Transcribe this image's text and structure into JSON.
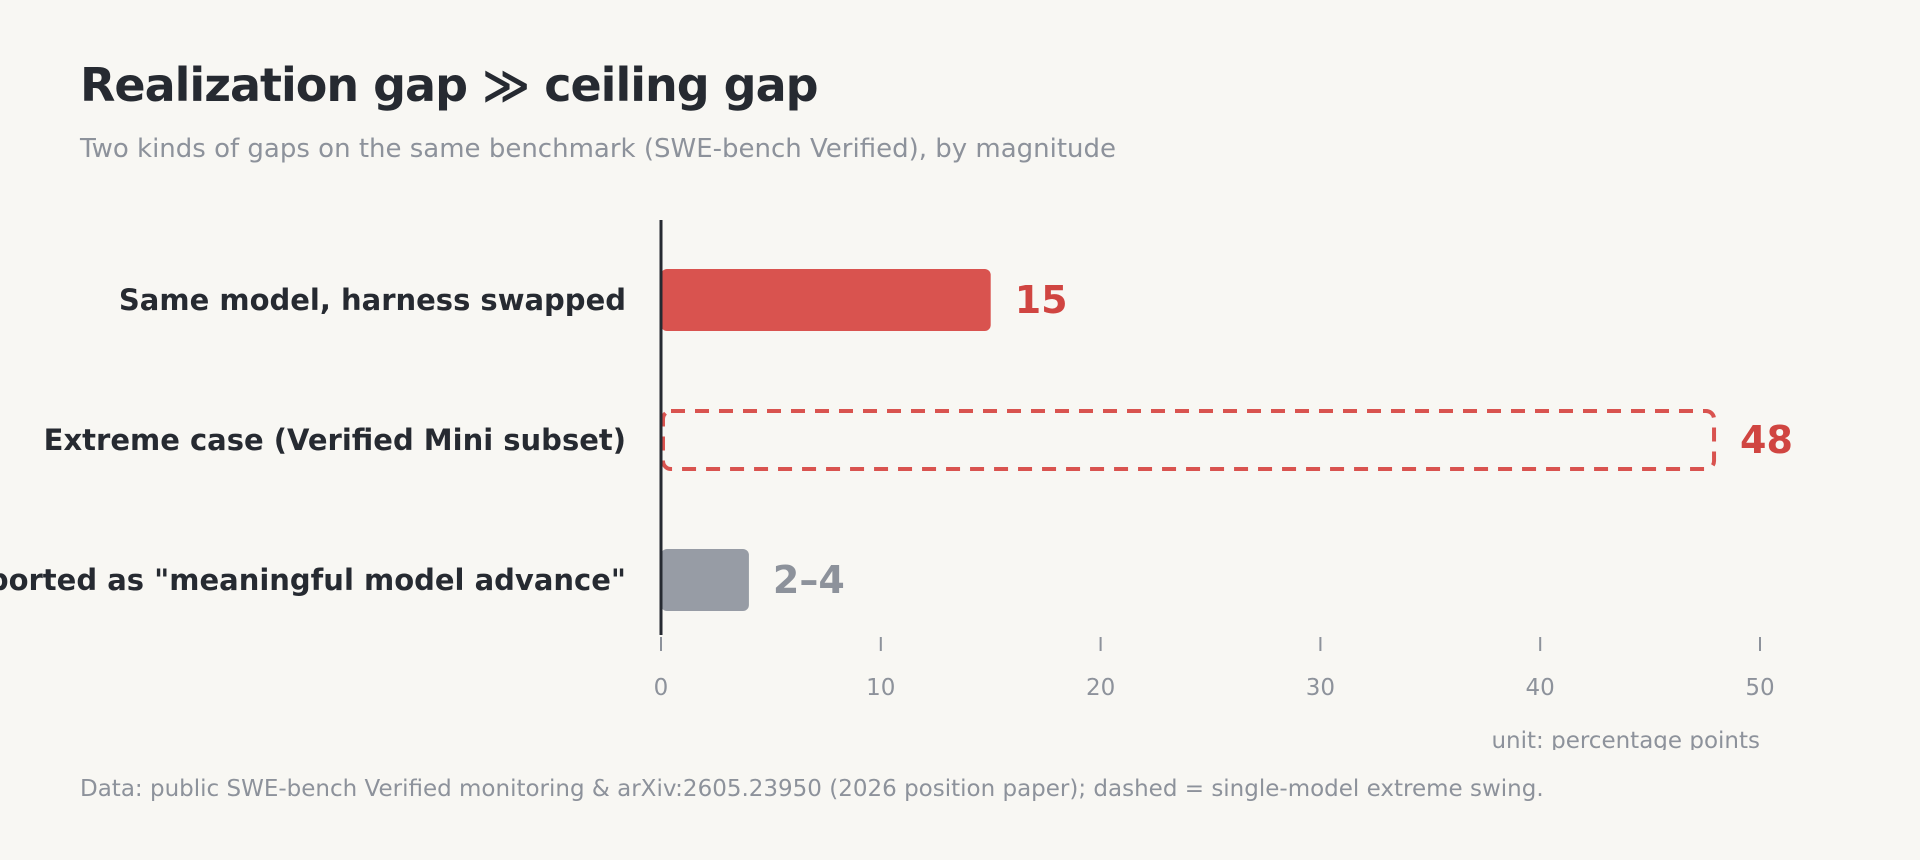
{
  "title": "Realization gap ≫ ceiling gap",
  "subtitle": "Two kinds of gaps on the same benchmark (SWE-bench Verified), by magnitude",
  "footnote": "Data: public SWE-bench Verified monitoring & arXiv:2605.23950 (2026 position paper); dashed = single-model extreme swing.",
  "colors": {
    "accent": "#d9534f",
    "accent_text": "#d04541",
    "muted": "#979ca5",
    "muted_text": "#8d929b",
    "axis": "#262a31",
    "background": "#f8f7f3"
  },
  "chart_data": {
    "type": "bar",
    "orientation": "horizontal",
    "categories": [
      "Same model, harness swapped",
      "Extreme case (Verified Mini subset)",
      "Reported as \"meaningful model advance\""
    ],
    "values": [
      15,
      48,
      4
    ],
    "value_labels": [
      "15",
      "48",
      "2–4"
    ],
    "styles": [
      "solid-accent",
      "dashed-accent",
      "solid-muted"
    ],
    "xlim": [
      0,
      50
    ],
    "xticks": [
      0,
      10,
      20,
      30,
      40,
      50
    ],
    "unit_label": "unit: percentage points",
    "grid": false
  }
}
